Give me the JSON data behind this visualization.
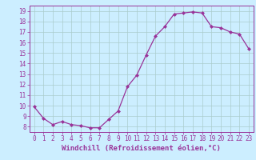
{
  "x": [
    0,
    1,
    2,
    3,
    4,
    5,
    6,
    7,
    8,
    9,
    10,
    11,
    12,
    13,
    14,
    15,
    16,
    17,
    18,
    19,
    20,
    21,
    22,
    23
  ],
  "y": [
    9.9,
    8.8,
    8.2,
    8.5,
    8.2,
    8.1,
    7.9,
    7.9,
    8.7,
    9.5,
    11.8,
    12.9,
    14.8,
    16.6,
    17.5,
    18.7,
    18.8,
    18.9,
    18.8,
    17.5,
    17.4,
    17.0,
    16.8,
    15.4
  ],
  "line_color": "#993399",
  "marker": "D",
  "marker_size": 2.0,
  "bg_color": "#cceeff",
  "grid_color": "#aacccc",
  "xlabel": "Windchill (Refroidissement éolien,°C)",
  "xlabel_color": "#993399",
  "tick_color": "#993399",
  "ylim": [
    7.5,
    19.5
  ],
  "xlim": [
    -0.5,
    23.5
  ],
  "yticks": [
    8,
    9,
    10,
    11,
    12,
    13,
    14,
    15,
    16,
    17,
    18,
    19
  ],
  "xticks": [
    0,
    1,
    2,
    3,
    4,
    5,
    6,
    7,
    8,
    9,
    10,
    11,
    12,
    13,
    14,
    15,
    16,
    17,
    18,
    19,
    20,
    21,
    22,
    23
  ],
  "tick_fontsize": 5.5,
  "xlabel_fontsize": 6.5,
  "line_width": 0.9
}
